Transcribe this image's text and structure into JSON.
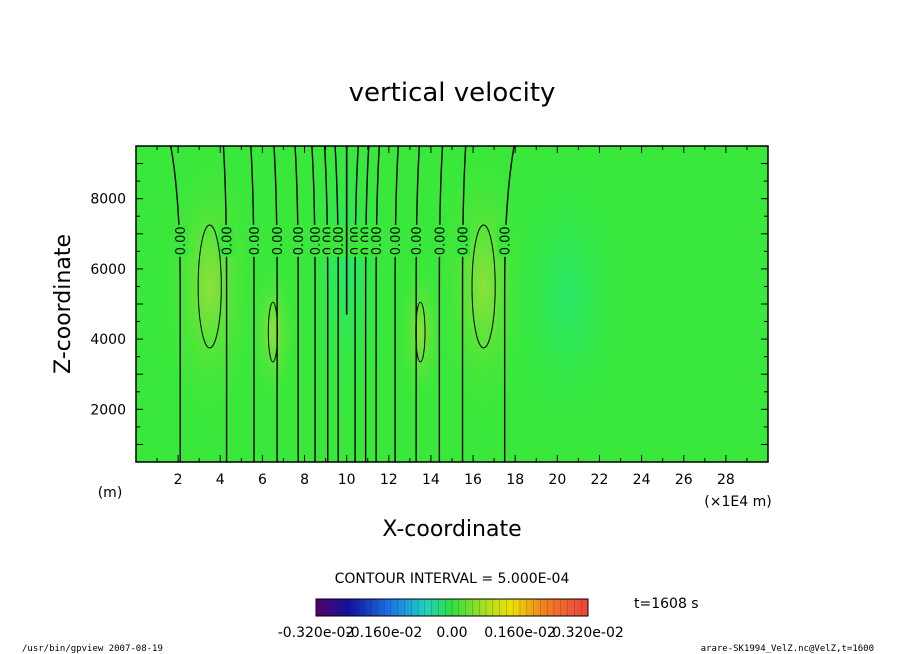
{
  "chart_data": {
    "type": "heatmap",
    "title": "vertical velocity",
    "xlabel": "X-coordinate",
    "ylabel": "Z-coordinate",
    "x_unit_label": "(m)",
    "x_scale_label": "(×1E4 m)",
    "xlim": [
      0,
      30
    ],
    "ylim": [
      500,
      9500
    ],
    "x_ticks": [
      "2",
      "4",
      "6",
      "8",
      "10",
      "12",
      "14",
      "16",
      "18",
      "20",
      "22",
      "24",
      "26",
      "28"
    ],
    "y_ticks": [
      "2000",
      "4000",
      "6000",
      "8000"
    ],
    "contour_interval_label": "CONTOUR INTERVAL = 5.000E-04",
    "contour_label": "0.00",
    "contour_x": [
      2.1,
      4.3,
      5.6,
      6.7,
      7.7,
      8.5,
      9.1,
      9.6,
      10.4,
      10.9,
      11.4,
      12.3,
      13.3,
      14.4,
      15.5,
      17.5
    ],
    "colorbar_labels": [
      "-0.320e-02",
      "-0.160e-02",
      "0.00",
      "0.160e-02",
      "0.320e-02"
    ],
    "time_label": "t=1608 s",
    "footer_left": "/usr/bin/gpview   2007-08-19",
    "footer_right": "arare-SK1994_VelZ.nc@VelZ,t=1600",
    "colors": {
      "field": "#39e83a",
      "weak_updraft": "#7fe040",
      "weak_downdraft": "#2ee860"
    }
  }
}
